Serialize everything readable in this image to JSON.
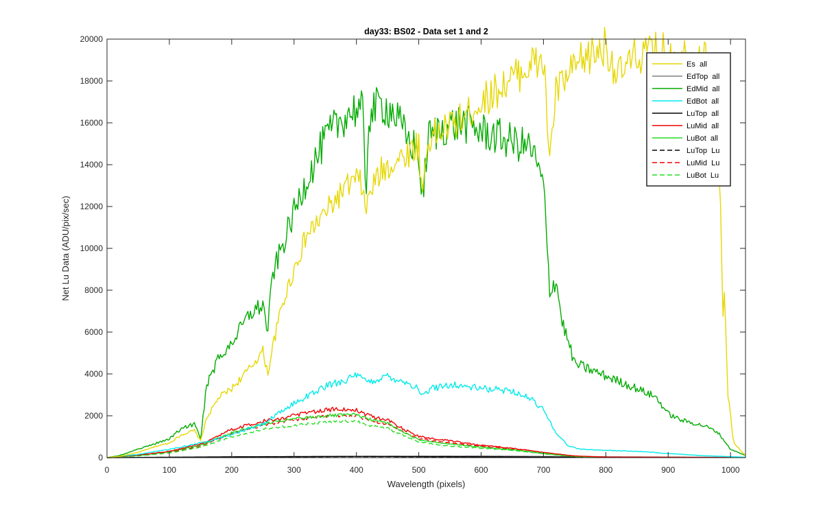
{
  "chart_data": {
    "type": "line",
    "title": "day33: BS02 - Data set 1 and 2",
    "xlabel": "Wavelength (pixels)",
    "ylabel": "Net Lu Data (ADU/pix/sec)",
    "xlim": [
      0,
      1024
    ],
    "ylim": [
      0,
      20000
    ],
    "xticks": [
      0,
      100,
      200,
      300,
      400,
      500,
      600,
      700,
      800,
      900,
      1000
    ],
    "yticks": [
      0,
      2000,
      4000,
      6000,
      8000,
      10000,
      12000,
      14000,
      16000,
      18000,
      20000
    ],
    "grid": false,
    "legend_position": "top-right",
    "series": [
      {
        "name": "Es  all",
        "color": "#e6d700",
        "dash": "solid",
        "noise": 0.05,
        "points": [
          [
            0,
            0
          ],
          [
            20,
            60
          ],
          [
            50,
            250
          ],
          [
            80,
            550
          ],
          [
            100,
            700
          ],
          [
            120,
            1100
          ],
          [
            140,
            1300
          ],
          [
            150,
            800
          ],
          [
            160,
            1900
          ],
          [
            180,
            2900
          ],
          [
            200,
            3300
          ],
          [
            230,
            4300
          ],
          [
            250,
            5100
          ],
          [
            258,
            4000
          ],
          [
            265,
            5200
          ],
          [
            280,
            7200
          ],
          [
            300,
            9000
          ],
          [
            320,
            10600
          ],
          [
            350,
            11700
          ],
          [
            380,
            12800
          ],
          [
            400,
            13300
          ],
          [
            410,
            13000
          ],
          [
            415,
            11500
          ],
          [
            420,
            12600
          ],
          [
            440,
            13700
          ],
          [
            460,
            14100
          ],
          [
            480,
            14500
          ],
          [
            500,
            15000
          ],
          [
            505,
            12500
          ],
          [
            515,
            15200
          ],
          [
            540,
            15700
          ],
          [
            570,
            16200
          ],
          [
            600,
            17000
          ],
          [
            640,
            17900
          ],
          [
            680,
            18800
          ],
          [
            700,
            18900
          ],
          [
            710,
            14300
          ],
          [
            720,
            17500
          ],
          [
            760,
            18900
          ],
          [
            800,
            19700
          ],
          [
            820,
            18200
          ],
          [
            850,
            19200
          ],
          [
            880,
            19400
          ],
          [
            920,
            19300
          ],
          [
            960,
            19000
          ],
          [
            975,
            17500
          ],
          [
            983,
            13000
          ],
          [
            988,
            6500
          ],
          [
            990,
            8000
          ],
          [
            996,
            3000
          ],
          [
            1005,
            700
          ],
          [
            1024,
            100
          ]
        ]
      },
      {
        "name": "EdTop  all",
        "color": "#808080",
        "dash": "solid",
        "noise": 0,
        "points": [
          [
            0,
            0
          ],
          [
            200,
            20
          ],
          [
            400,
            60
          ],
          [
            600,
            80
          ],
          [
            800,
            40
          ],
          [
            1024,
            10
          ]
        ]
      },
      {
        "name": "EdMid  all",
        "color": "#00aa00",
        "dash": "solid",
        "noise": 0.06,
        "points": [
          [
            0,
            0
          ],
          [
            20,
            100
          ],
          [
            50,
            400
          ],
          [
            80,
            700
          ],
          [
            100,
            900
          ],
          [
            120,
            1400
          ],
          [
            140,
            1600
          ],
          [
            150,
            900
          ],
          [
            160,
            3500
          ],
          [
            180,
            4800
          ],
          [
            200,
            5500
          ],
          [
            230,
            6900
          ],
          [
            250,
            7300
          ],
          [
            258,
            6000
          ],
          [
            265,
            8700
          ],
          [
            280,
            10000
          ],
          [
            300,
            11700
          ],
          [
            320,
            13300
          ],
          [
            350,
            15200
          ],
          [
            380,
            16300
          ],
          [
            400,
            16700
          ],
          [
            410,
            16500
          ],
          [
            415,
            12300
          ],
          [
            420,
            16400
          ],
          [
            440,
            16900
          ],
          [
            460,
            16500
          ],
          [
            480,
            15300
          ],
          [
            500,
            14600
          ],
          [
            505,
            12000
          ],
          [
            515,
            15300
          ],
          [
            540,
            15800
          ],
          [
            570,
            16000
          ],
          [
            600,
            15600
          ],
          [
            650,
            15100
          ],
          [
            680,
            14800
          ],
          [
            700,
            13000
          ],
          [
            710,
            8000
          ],
          [
            720,
            8500
          ],
          [
            730,
            6500
          ],
          [
            750,
            4500
          ],
          [
            800,
            3900
          ],
          [
            850,
            3300
          ],
          [
            880,
            2900
          ],
          [
            900,
            2100
          ],
          [
            920,
            1800
          ],
          [
            960,
            1500
          ],
          [
            980,
            1200
          ],
          [
            1000,
            400
          ],
          [
            1024,
            100
          ]
        ]
      },
      {
        "name": "EdBot  all",
        "color": "#00eaea",
        "dash": "solid",
        "noise": 0.05,
        "points": [
          [
            0,
            0
          ],
          [
            50,
            150
          ],
          [
            100,
            400
          ],
          [
            150,
            700
          ],
          [
            200,
            1100
          ],
          [
            250,
            1600
          ],
          [
            300,
            2600
          ],
          [
            350,
            3400
          ],
          [
            400,
            3900
          ],
          [
            420,
            3600
          ],
          [
            450,
            3900
          ],
          [
            480,
            3600
          ],
          [
            500,
            3300
          ],
          [
            505,
            2900
          ],
          [
            520,
            3300
          ],
          [
            550,
            3500
          ],
          [
            600,
            3300
          ],
          [
            650,
            3200
          ],
          [
            680,
            2800
          ],
          [
            700,
            2300
          ],
          [
            720,
            1200
          ],
          [
            740,
            550
          ],
          [
            760,
            400
          ],
          [
            800,
            350
          ],
          [
            850,
            300
          ],
          [
            900,
            200
          ],
          [
            950,
            100
          ],
          [
            1024,
            20
          ]
        ]
      },
      {
        "name": "LuTop  all",
        "color": "#000000",
        "dash": "solid",
        "noise": 0,
        "points": [
          [
            0,
            0
          ],
          [
            100,
            20
          ],
          [
            200,
            40
          ],
          [
            400,
            60
          ],
          [
            600,
            40
          ],
          [
            800,
            20
          ],
          [
            1024,
            5
          ]
        ]
      },
      {
        "name": "LuMid  all",
        "color": "#ee0000",
        "dash": "solid",
        "noise": 0.05,
        "points": [
          [
            0,
            0
          ],
          [
            50,
            120
          ],
          [
            100,
            300
          ],
          [
            150,
            650
          ],
          [
            200,
            1350
          ],
          [
            250,
            1750
          ],
          [
            300,
            2000
          ],
          [
            350,
            2300
          ],
          [
            400,
            2300
          ],
          [
            420,
            2000
          ],
          [
            450,
            1800
          ],
          [
            480,
            1300
          ],
          [
            500,
            1000
          ],
          [
            550,
            800
          ],
          [
            600,
            600
          ],
          [
            650,
            450
          ],
          [
            700,
            250
          ],
          [
            750,
            80
          ],
          [
            800,
            30
          ],
          [
            1024,
            5
          ]
        ]
      },
      {
        "name": "LuBot  all",
        "color": "#22dd22",
        "dash": "solid",
        "noise": 0.04,
        "points": [
          [
            0,
            0
          ],
          [
            50,
            100
          ],
          [
            100,
            280
          ],
          [
            150,
            600
          ],
          [
            200,
            1200
          ],
          [
            250,
            1600
          ],
          [
            300,
            1850
          ],
          [
            350,
            2000
          ],
          [
            400,
            2050
          ],
          [
            420,
            1850
          ],
          [
            450,
            1650
          ],
          [
            480,
            1150
          ],
          [
            500,
            850
          ],
          [
            550,
            650
          ],
          [
            600,
            500
          ],
          [
            650,
            380
          ],
          [
            700,
            200
          ],
          [
            750,
            60
          ],
          [
            800,
            20
          ],
          [
            1024,
            5
          ]
        ]
      },
      {
        "name": "LuTop  Lu",
        "color": "#000000",
        "dash": "dashed",
        "noise": 0,
        "points": [
          [
            0,
            0
          ],
          [
            100,
            15
          ],
          [
            200,
            30
          ],
          [
            400,
            50
          ],
          [
            600,
            35
          ],
          [
            800,
            15
          ],
          [
            1024,
            5
          ]
        ]
      },
      {
        "name": "LuMid  Lu",
        "color": "#ee0000",
        "dash": "dashed",
        "noise": 0.04,
        "points": [
          [
            0,
            0
          ],
          [
            50,
            100
          ],
          [
            100,
            250
          ],
          [
            150,
            550
          ],
          [
            200,
            1150
          ],
          [
            250,
            1550
          ],
          [
            300,
            1800
          ],
          [
            350,
            2000
          ],
          [
            400,
            2000
          ],
          [
            420,
            1800
          ],
          [
            450,
            1600
          ],
          [
            480,
            1150
          ],
          [
            500,
            900
          ],
          [
            550,
            700
          ],
          [
            600,
            550
          ],
          [
            650,
            400
          ],
          [
            700,
            200
          ],
          [
            750,
            60
          ],
          [
            800,
            20
          ],
          [
            1024,
            5
          ]
        ]
      },
      {
        "name": "LuBot  Lu",
        "color": "#22dd22",
        "dash": "dashed",
        "noise": 0.04,
        "points": [
          [
            0,
            0
          ],
          [
            50,
            80
          ],
          [
            100,
            220
          ],
          [
            150,
            500
          ],
          [
            200,
            1000
          ],
          [
            250,
            1350
          ],
          [
            300,
            1550
          ],
          [
            350,
            1700
          ],
          [
            400,
            1750
          ],
          [
            420,
            1550
          ],
          [
            450,
            1400
          ],
          [
            480,
            1000
          ],
          [
            500,
            750
          ],
          [
            550,
            550
          ],
          [
            600,
            450
          ],
          [
            650,
            350
          ],
          [
            700,
            180
          ],
          [
            750,
            50
          ],
          [
            800,
            15
          ],
          [
            1024,
            5
          ]
        ]
      }
    ]
  }
}
